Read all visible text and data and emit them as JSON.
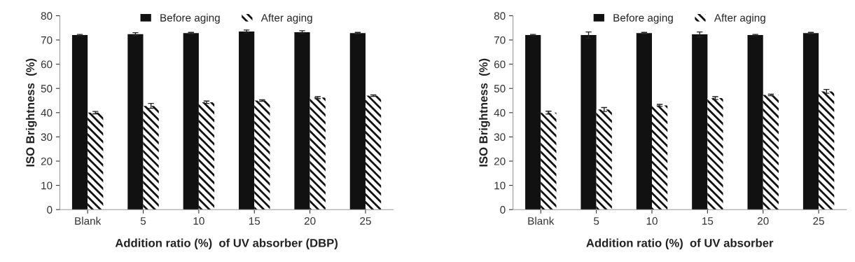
{
  "chart_data": [
    {
      "type": "bar",
      "categories": [
        "Blank",
        "5",
        "10",
        "15",
        "20",
        "25"
      ],
      "xlabel": "Addition ratio (%)  of UV absorber (DBP)",
      "ylabel": "ISO Brightness  (%)",
      "ylim": [
        0,
        80
      ],
      "yticks": [
        0,
        10,
        20,
        30,
        40,
        50,
        60,
        70,
        80
      ],
      "legend": "top",
      "grid": false,
      "series": [
        {
          "name": "Before aging",
          "color": "#111111",
          "values": [
            72.0,
            72.4,
            72.8,
            73.5,
            73.2,
            72.8
          ],
          "errors": [
            0.3,
            0.6,
            0.3,
            0.6,
            0.6,
            0.3
          ]
        },
        {
          "name": "After aging",
          "color": "#ffffff",
          "values": [
            40.0,
            42.8,
            44.3,
            45.0,
            46.2,
            47.0
          ],
          "errors": [
            0.5,
            1.0,
            0.5,
            0.3,
            0.4,
            0.3
          ]
        }
      ]
    },
    {
      "type": "bar",
      "categories": [
        "Blank",
        "5",
        "10",
        "15",
        "20",
        "25"
      ],
      "xlabel": "Addition ratio (%)  of UV absorber",
      "ylabel": "ISO Brightness  (%)",
      "ylim": [
        0,
        80
      ],
      "yticks": [
        0,
        10,
        20,
        30,
        40,
        50,
        60,
        70,
        80
      ],
      "legend": "top",
      "grid": false,
      "series": [
        {
          "name": "Before aging",
          "color": "#111111",
          "values": [
            72.0,
            72.0,
            72.8,
            72.3,
            72.0,
            72.8
          ],
          "errors": [
            0.3,
            1.3,
            0.3,
            1.0,
            0.3,
            0.3
          ]
        },
        {
          "name": "After aging",
          "color": "#ffffff",
          "values": [
            40.0,
            41.3,
            43.0,
            46.0,
            47.3,
            48.8
          ],
          "errors": [
            0.6,
            0.8,
            0.4,
            0.6,
            0.3,
            0.8
          ]
        }
      ]
    }
  ]
}
